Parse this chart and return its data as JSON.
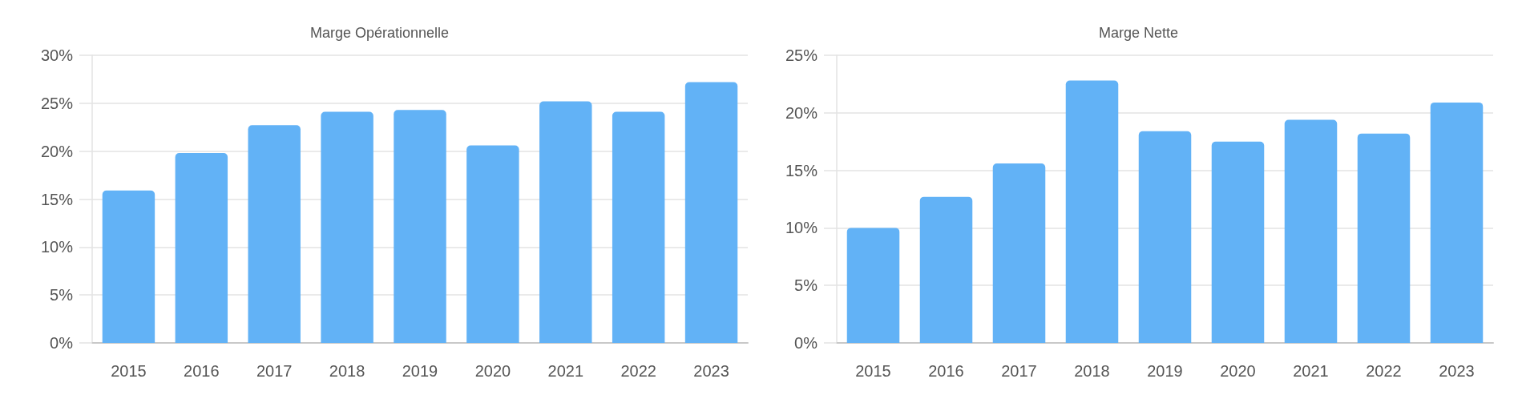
{
  "chart_data": [
    {
      "type": "bar",
      "title": "Marge Opérationnelle",
      "categories": [
        "2015",
        "2016",
        "2017",
        "2018",
        "2019",
        "2020",
        "2021",
        "2022",
        "2023"
      ],
      "values": [
        15.9,
        19.8,
        22.7,
        24.1,
        24.3,
        20.6,
        25.2,
        24.1,
        27.2
      ],
      "color": "#62b2f6",
      "ylim": [
        0,
        30
      ],
      "yticks": [
        {
          "value": 0,
          "label": "0%"
        },
        {
          "value": 5,
          "label": "5%"
        },
        {
          "value": 10,
          "label": "10%"
        },
        {
          "value": 15,
          "label": "15%"
        },
        {
          "value": 20,
          "label": "20%"
        },
        {
          "value": 25,
          "label": "25%"
        },
        {
          "value": 30,
          "label": "30%"
        }
      ],
      "grid": "y"
    },
    {
      "type": "bar",
      "title": "Marge Nette",
      "categories": [
        "2015",
        "2016",
        "2017",
        "2018",
        "2019",
        "2020",
        "2021",
        "2022",
        "2023"
      ],
      "values": [
        10.0,
        12.7,
        15.6,
        22.8,
        18.4,
        17.5,
        19.4,
        18.2,
        20.9
      ],
      "color": "#62b2f6",
      "ylim": [
        0,
        25
      ],
      "yticks": [
        {
          "value": 0,
          "label": "0%"
        },
        {
          "value": 5,
          "label": "5%"
        },
        {
          "value": 10,
          "label": "10%"
        },
        {
          "value": 15,
          "label": "15%"
        },
        {
          "value": 20,
          "label": "20%"
        },
        {
          "value": 25,
          "label": "25%"
        }
      ],
      "grid": "y"
    }
  ]
}
